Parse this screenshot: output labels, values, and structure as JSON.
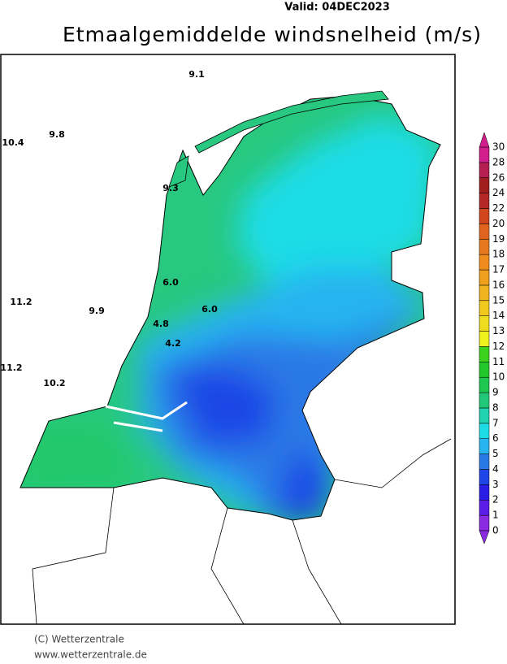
{
  "header": {
    "valid": "Valid:  04DEC2023",
    "title": "Etmaalgemiddelde windsnelheid (m/s)"
  },
  "stations": [
    "9.1",
    "9.8",
    "10.4",
    "9.3",
    "6.0",
    "11.2",
    "9.9",
    "4.8",
    "4.2",
    "6.0",
    "11.2",
    "10.2"
  ],
  "legend": {
    "levels": [
      0,
      1,
      2,
      3,
      4,
      5,
      6,
      7,
      8,
      9,
      10,
      11,
      12,
      13,
      14,
      15,
      16,
      17,
      18,
      19,
      20,
      22,
      24,
      26,
      28,
      30
    ],
    "colors": [
      "#8a2be2",
      "#5a1ee8",
      "#2a1ee6",
      "#1e46e6",
      "#2a78e6",
      "#28b4f0",
      "#1edce6",
      "#20d2b0",
      "#20c878",
      "#1ec850",
      "#22c82a",
      "#3cd21e",
      "#f0f01e",
      "#f0dc1e",
      "#f0c81e",
      "#f0b41e",
      "#f0a01e",
      "#f08c1e",
      "#e6781e",
      "#e0641e",
      "#d2461e",
      "#b42828",
      "#a01e1e",
      "#b41e50",
      "#d21e8c"
    ]
  },
  "footer": {
    "copyright": "(C) Wetterzentrale",
    "url": "www.wetterzentrale.de"
  }
}
